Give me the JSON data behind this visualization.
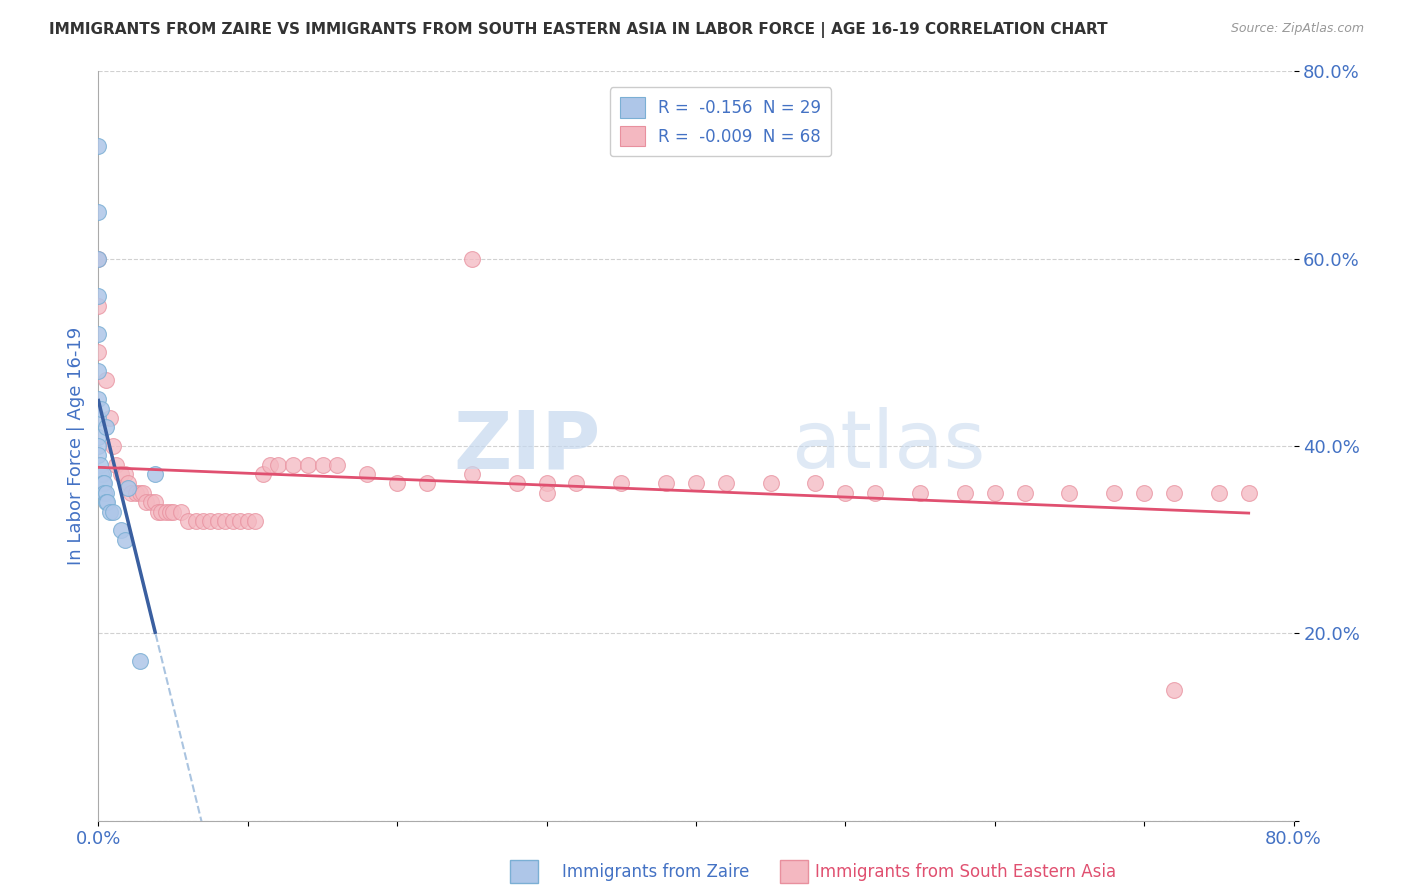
{
  "title": "IMMIGRANTS FROM ZAIRE VS IMMIGRANTS FROM SOUTH EASTERN ASIA IN LABOR FORCE | AGE 16-19 CORRELATION CHART",
  "source": "Source: ZipAtlas.com",
  "ylabel": "In Labor Force | Age 16-19",
  "xlim": [
    0.0,
    0.8
  ],
  "ylim": [
    0.0,
    0.8
  ],
  "legend_blue_label": "R =  -0.156  N = 29",
  "legend_pink_label": "R =  -0.009  N = 68",
  "legend_blue_color": "#aec6e8",
  "legend_pink_color": "#f4b8c1",
  "dot_blue_color": "#aec6e8",
  "dot_pink_color": "#f4b8c1",
  "dot_edge_blue": "#7bafd4",
  "dot_edge_pink": "#e8909e",
  "trend_blue_color": "#3a5fa0",
  "trend_pink_color": "#e05070",
  "trend_dash_color": "#aac4e0",
  "background_color": "#ffffff",
  "grid_color": "#cccccc",
  "title_color": "#333333",
  "axis_label_color": "#4472c4",
  "tick_label_color": "#4472c4",
  "watermark_color": "#d0e4f0",
  "blue_scatter_x": [
    0.0,
    0.0,
    0.0,
    0.0,
    0.0,
    0.0,
    0.0,
    0.0,
    0.0,
    0.0,
    0.0,
    0.001,
    0.002,
    0.002,
    0.003,
    0.003,
    0.004,
    0.004,
    0.005,
    0.005,
    0.005,
    0.006,
    0.008,
    0.01,
    0.015,
    0.018,
    0.02,
    0.028,
    0.038
  ],
  "blue_scatter_y": [
    0.72,
    0.65,
    0.6,
    0.56,
    0.52,
    0.48,
    0.45,
    0.43,
    0.41,
    0.4,
    0.39,
    0.38,
    0.37,
    0.44,
    0.37,
    0.36,
    0.36,
    0.35,
    0.35,
    0.34,
    0.42,
    0.34,
    0.33,
    0.33,
    0.31,
    0.3,
    0.355,
    0.17,
    0.37
  ],
  "pink_scatter_x": [
    0.0,
    0.0,
    0.0,
    0.005,
    0.008,
    0.01,
    0.012,
    0.015,
    0.018,
    0.02,
    0.022,
    0.025,
    0.028,
    0.03,
    0.032,
    0.035,
    0.038,
    0.04,
    0.042,
    0.045,
    0.048,
    0.05,
    0.055,
    0.06,
    0.065,
    0.07,
    0.075,
    0.08,
    0.085,
    0.09,
    0.095,
    0.1,
    0.105,
    0.11,
    0.115,
    0.12,
    0.13,
    0.14,
    0.15,
    0.16,
    0.18,
    0.2,
    0.22,
    0.25,
    0.28,
    0.3,
    0.32,
    0.35,
    0.38,
    0.4,
    0.42,
    0.45,
    0.48,
    0.5,
    0.52,
    0.55,
    0.58,
    0.6,
    0.62,
    0.65,
    0.68,
    0.7,
    0.72,
    0.75,
    0.77,
    0.25,
    0.3,
    0.72
  ],
  "pink_scatter_y": [
    0.6,
    0.55,
    0.5,
    0.47,
    0.43,
    0.4,
    0.38,
    0.37,
    0.37,
    0.36,
    0.35,
    0.35,
    0.35,
    0.35,
    0.34,
    0.34,
    0.34,
    0.33,
    0.33,
    0.33,
    0.33,
    0.33,
    0.33,
    0.32,
    0.32,
    0.32,
    0.32,
    0.32,
    0.32,
    0.32,
    0.32,
    0.32,
    0.32,
    0.37,
    0.38,
    0.38,
    0.38,
    0.38,
    0.38,
    0.38,
    0.37,
    0.36,
    0.36,
    0.37,
    0.36,
    0.36,
    0.36,
    0.36,
    0.36,
    0.36,
    0.36,
    0.36,
    0.36,
    0.35,
    0.35,
    0.35,
    0.35,
    0.35,
    0.35,
    0.35,
    0.35,
    0.35,
    0.35,
    0.35,
    0.35,
    0.6,
    0.35,
    0.14
  ]
}
